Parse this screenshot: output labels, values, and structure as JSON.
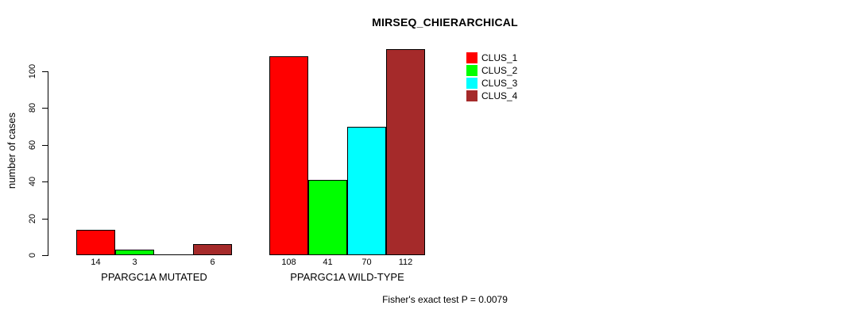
{
  "chart_data": {
    "type": "bar",
    "title": "MIRSEQ_CHIERARCHICAL",
    "ylabel": "number of cases",
    "xlabel": "",
    "ylim": [
      0,
      116
    ],
    "yticks": [
      0,
      20,
      40,
      60,
      80,
      100
    ],
    "grid": false,
    "legend_position": "top-right-inside",
    "bar_border_color": "#000000",
    "background_color": "#FFFFFF",
    "categories": [
      "PPARGC1A MUTATED",
      "PPARGC1A WILD-TYPE"
    ],
    "series": [
      {
        "name": "CLUS_1",
        "color": "#FF0000",
        "values": [
          14,
          108
        ]
      },
      {
        "name": "CLUS_2",
        "color": "#00FF00",
        "values": [
          3,
          41
        ]
      },
      {
        "name": "CLUS_3",
        "color": "#00FFFF",
        "values": [
          0,
          70
        ]
      },
      {
        "name": "CLUS_4",
        "color": "#A52A2A",
        "values": [
          6,
          112
        ]
      }
    ],
    "value_labels": {
      "note": "bar values printed under each nonzero bar",
      "shown_for_zero": false
    },
    "annotation": "Fisher's exact test P = 0.0079"
  }
}
